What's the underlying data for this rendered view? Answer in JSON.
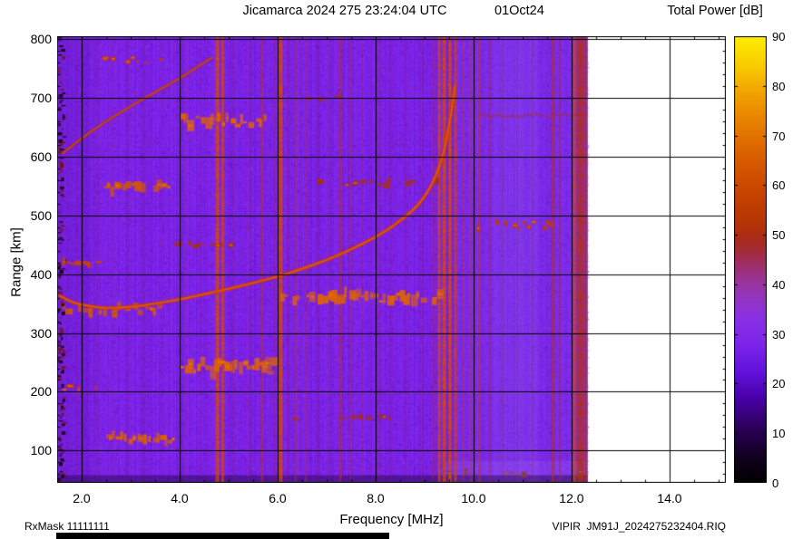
{
  "header": {
    "title": "Jicamarca 2024 275 23:24:04 UTC",
    "date": "01Oct24",
    "colorbar_title": "Total Power [dB]"
  },
  "axes": {
    "x_label": "Frequency [MHz]",
    "y_label": "Range [km]",
    "x_tick_labels": [
      "2.0",
      "4.0",
      "6.0",
      "8.0",
      "10.0",
      "12.0",
      "14.0"
    ],
    "x_tick_values": [
      2,
      4,
      6,
      8,
      10,
      12,
      14
    ],
    "y_tick_values": [
      100,
      200,
      300,
      400,
      500,
      600,
      700,
      800
    ],
    "colorbar_tick_values": [
      0,
      10,
      20,
      30,
      40,
      50,
      60,
      70,
      80,
      90
    ]
  },
  "footer": {
    "rx_mask": "RxMask 11111111",
    "file": "VIPIR  JM91J_2024275232404.RIQ"
  },
  "chart_data": {
    "type": "heatmap",
    "title": "Jicamarca 2024 275 23:24:04 UTC 01Oct24",
    "xlabel": "Frequency [MHz]",
    "ylabel": "Range [km]",
    "zlabel": "Total Power [dB]",
    "xlim": [
      1.5,
      15.15
    ],
    "ylim": [
      45,
      805
    ],
    "zlim": [
      0,
      90
    ],
    "grid": true,
    "x_major_ticks": [
      2,
      4,
      6,
      8,
      10,
      12,
      14
    ],
    "y_major_ticks": [
      100,
      200,
      300,
      400,
      500,
      600,
      700,
      800
    ],
    "data_freq_max": 12.33,
    "background": {
      "base_color": "#7d22e8",
      "level_db": 27
    },
    "palette_stops": [
      [
        0.0,
        "#000000"
      ],
      [
        0.05,
        "#0e0018"
      ],
      [
        0.12,
        "#2a0055"
      ],
      [
        0.19,
        "#4800a8"
      ],
      [
        0.25,
        "#6212dc"
      ],
      [
        0.31,
        "#7c24ea"
      ],
      [
        0.37,
        "#8a30e4"
      ],
      [
        0.42,
        "#9336bb"
      ],
      [
        0.46,
        "#9a3390"
      ],
      [
        0.5,
        "#a02c58"
      ],
      [
        0.54,
        "#a82a20"
      ],
      [
        0.58,
        "#b43404"
      ],
      [
        0.65,
        "#c64400"
      ],
      [
        0.72,
        "#d65a00"
      ],
      [
        0.8,
        "#e67c00"
      ],
      [
        0.87,
        "#f0a000"
      ],
      [
        0.93,
        "#f8c800"
      ],
      [
        1.0,
        "#ffee00"
      ]
    ],
    "region_tints": [
      {
        "f0": 9.65,
        "f1": 12.33,
        "color": "#8c78ff",
        "alpha": 0.1
      },
      {
        "f0": 10.4,
        "f1": 11.3,
        "color": "#9a8cff",
        "alpha": 0.1
      },
      {
        "f0": 9.4,
        "f1": 12.33,
        "km0": 45,
        "km1": 82,
        "color": "#b080ff",
        "alpha": 0.16
      },
      {
        "f0": 1.5,
        "f1": 2.2,
        "color": "#30006a",
        "alpha": 0.1
      },
      {
        "f0": 1.5,
        "f1": 12.33,
        "km0": 45,
        "km1": 58,
        "color": "#14002a",
        "alpha": 0.4
      }
    ],
    "rfi_stripes": [
      {
        "f": 2.32,
        "w": 2,
        "color": "#9c2a0a",
        "alpha": 0.2
      },
      {
        "f": 2.62,
        "w": 2,
        "color": "#9c2a0a",
        "alpha": 0.16
      },
      {
        "f": 2.95,
        "w": 2,
        "color": "#9c2a0a",
        "alpha": 0.16
      },
      {
        "f": 3.28,
        "w": 2,
        "color": "#9c2a0a",
        "alpha": 0.18
      },
      {
        "f": 3.62,
        "w": 1.5,
        "color": "#9c2a0a",
        "alpha": 0.14
      },
      {
        "f": 4.1,
        "w": 2,
        "color": "#9c2a0a",
        "alpha": 0.16
      },
      {
        "f": 4.45,
        "w": 1.5,
        "color": "#9c2a0a",
        "alpha": 0.14
      },
      {
        "f": 4.77,
        "w": 4,
        "color": "#d64a00",
        "alpha": 0.95
      },
      {
        "f": 4.88,
        "w": 3,
        "color": "#d64a00",
        "alpha": 0.88
      },
      {
        "f": 5.1,
        "w": 2,
        "color": "#9c2a0a",
        "alpha": 0.22
      },
      {
        "f": 5.43,
        "w": 2,
        "color": "#9c2a0a",
        "alpha": 0.26
      },
      {
        "f": 5.68,
        "w": 3,
        "color": "#b83408",
        "alpha": 0.6
      },
      {
        "f": 5.93,
        "w": 2,
        "color": "#9c2a0a",
        "alpha": 0.3
      },
      {
        "f": 6.06,
        "w": 5,
        "color": "#d64a00",
        "alpha": 0.95
      },
      {
        "f": 6.22,
        "w": 2,
        "color": "#9c2a0a",
        "alpha": 0.3
      },
      {
        "f": 6.37,
        "w": 2,
        "color": "#b83408",
        "alpha": 0.55
      },
      {
        "f": 6.58,
        "w": 2,
        "color": "#b83408",
        "alpha": 0.45
      },
      {
        "f": 6.82,
        "w": 2,
        "color": "#9c2a0a",
        "alpha": 0.22
      },
      {
        "f": 7.06,
        "w": 2,
        "color": "#9c2a0a",
        "alpha": 0.26
      },
      {
        "f": 7.28,
        "w": 3,
        "color": "#b83408",
        "alpha": 0.6
      },
      {
        "f": 7.49,
        "w": 2,
        "color": "#b83408",
        "alpha": 0.42
      },
      {
        "f": 7.72,
        "w": 2,
        "color": "#9c2a0a",
        "alpha": 0.2
      },
      {
        "f": 8.08,
        "w": 2,
        "color": "#9c2a0a",
        "alpha": 0.3
      },
      {
        "f": 8.32,
        "w": 2,
        "color": "#9c2a0a",
        "alpha": 0.2
      },
      {
        "f": 8.62,
        "w": 2,
        "color": "#9c2a0a",
        "alpha": 0.18
      },
      {
        "f": 8.95,
        "w": 2,
        "color": "#9c2a0a",
        "alpha": 0.22
      },
      {
        "f": 9.18,
        "w": 2,
        "color": "#b83408",
        "alpha": 0.45
      },
      {
        "f": 9.3,
        "w": 3,
        "color": "#d64a00",
        "alpha": 0.92
      },
      {
        "f": 9.4,
        "w": 4,
        "color": "#d64a00",
        "alpha": 0.95
      },
      {
        "f": 9.52,
        "w": 4,
        "color": "#d64a00",
        "alpha": 0.92
      },
      {
        "f": 9.63,
        "w": 3,
        "color": "#d64a00",
        "alpha": 0.88
      },
      {
        "f": 9.78,
        "w": 2,
        "color": "#b83408",
        "alpha": 0.5
      },
      {
        "f": 9.95,
        "w": 2,
        "color": "#b83408",
        "alpha": 0.55
      },
      {
        "f": 10.12,
        "w": 3,
        "color": "#b83408",
        "alpha": 0.6
      },
      {
        "f": 10.33,
        "w": 2,
        "color": "#b83408",
        "alpha": 0.4
      },
      {
        "f": 10.6,
        "w": 2,
        "color": "#9c2a0a",
        "alpha": 0.25
      },
      {
        "f": 10.9,
        "w": 1.5,
        "color": "#9c2a0a",
        "alpha": 0.2
      },
      {
        "f": 11.2,
        "w": 2,
        "color": "#9c2a0a",
        "alpha": 0.25
      },
      {
        "f": 11.62,
        "w": 3,
        "color": "#b83408",
        "alpha": 0.65
      },
      {
        "f": 11.76,
        "w": 2,
        "color": "#b83408",
        "alpha": 0.5
      },
      {
        "f": 12.06,
        "w": 3,
        "color": "#d64a00",
        "alpha": 0.85
      },
      {
        "f": 12.18,
        "w": 7,
        "color": "#b83008",
        "alpha": 0.95
      },
      {
        "f": 12.29,
        "w": 3,
        "color": "#b83408",
        "alpha": 0.75
      }
    ],
    "trace_f_layer": {
      "color": "#cc3c00",
      "width": 3,
      "points": [
        [
          1.55,
          363
        ],
        [
          1.8,
          352
        ],
        [
          2.1,
          346
        ],
        [
          2.5,
          342
        ],
        [
          3.0,
          344
        ],
        [
          3.5,
          350
        ],
        [
          4.0,
          357
        ],
        [
          4.5,
          366
        ],
        [
          5.0,
          375
        ],
        [
          5.5,
          385
        ],
        [
          6.0,
          396
        ],
        [
          6.5,
          409
        ],
        [
          7.0,
          424
        ],
        [
          7.5,
          442
        ],
        [
          8.0,
          463
        ],
        [
          8.4,
          484
        ],
        [
          8.8,
          511
        ],
        [
          9.05,
          537
        ],
        [
          9.25,
          570
        ],
        [
          9.4,
          610
        ],
        [
          9.5,
          652
        ],
        [
          9.58,
          695
        ],
        [
          9.62,
          720
        ]
      ]
    },
    "trace_second_hop": {
      "color": "#b03408",
      "width": 2,
      "points": [
        [
          1.62,
          606
        ],
        [
          2.0,
          632
        ],
        [
          2.5,
          660
        ],
        [
          3.0,
          686
        ],
        [
          3.5,
          710
        ],
        [
          4.0,
          733
        ],
        [
          4.35,
          752
        ],
        [
          4.65,
          768
        ]
      ]
    },
    "band_670km": {
      "f0": 10.05,
      "f1": 12.3,
      "range_km": 670,
      "color": "#a83008"
    },
    "echo_clusters": [
      {
        "f0": 2.1,
        "f1": 3.75,
        "range_km": 765,
        "spread_km": 11,
        "color": "#c83a05",
        "density": 0.45
      },
      {
        "f0": 4.0,
        "f1": 5.75,
        "range_km": 660,
        "spread_km": 17,
        "color": "#e06400",
        "density": 0.85
      },
      {
        "f0": 2.45,
        "f1": 3.85,
        "range_km": 548,
        "spread_km": 15,
        "color": "#d45800",
        "density": 0.8
      },
      {
        "f0": 6.8,
        "f1": 9.25,
        "range_km": 556,
        "spread_km": 9,
        "color": "#a83008",
        "density": 0.4
      },
      {
        "f0": 10.0,
        "f1": 11.55,
        "range_km": 483,
        "spread_km": 13,
        "color": "#bb3a10",
        "density": 0.6
      },
      {
        "f0": 1.6,
        "f1": 2.3,
        "range_km": 420,
        "spread_km": 13,
        "color": "#c84405",
        "density": 0.65
      },
      {
        "f0": 3.9,
        "f1": 5.2,
        "range_km": 452,
        "spread_km": 8,
        "color": "#a83008",
        "density": 0.3
      },
      {
        "f0": 6.05,
        "f1": 9.3,
        "range_km": 362,
        "spread_km": 18,
        "color": "#e06400",
        "density": 0.85
      },
      {
        "f0": 1.6,
        "f1": 3.6,
        "range_km": 340,
        "spread_km": 14,
        "color": "#d45800",
        "density": 0.8
      },
      {
        "f0": 4.0,
        "f1": 5.9,
        "range_km": 242,
        "spread_km": 20,
        "color": "#e06400",
        "density": 0.9
      },
      {
        "f0": 1.6,
        "f1": 2.55,
        "range_km": 205,
        "spread_km": 12,
        "color": "#c83a05",
        "density": 0.55
      },
      {
        "f0": 2.5,
        "f1": 3.95,
        "range_km": 120,
        "spread_km": 15,
        "color": "#d86000",
        "density": 0.85
      },
      {
        "f0": 6.6,
        "f1": 7.6,
        "range_km": 700,
        "spread_km": 6,
        "color": "#a83008",
        "density": 0.2
      },
      {
        "f0": 9.3,
        "f1": 12.2,
        "range_km": 60,
        "spread_km": 9,
        "color": "#8a4020",
        "density": 0.3
      },
      {
        "f0": 6.3,
        "f1": 8.3,
        "range_km": 155,
        "spread_km": 6,
        "color": "#a83008",
        "density": 0.25
      }
    ]
  }
}
